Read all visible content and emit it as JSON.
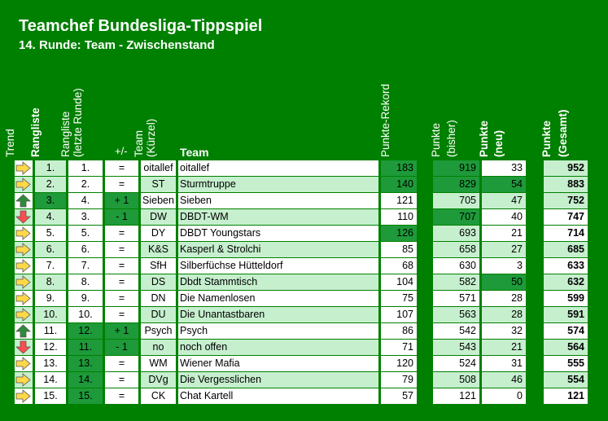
{
  "title": "Teamchef Bundesliga-Tippspiel",
  "subtitle": "14. Runde: Team - Zwischenstand",
  "headers": {
    "trend": "Trend",
    "rangliste": "Rangliste",
    "rangliste_letzte_1": "Rangliste",
    "rangliste_letzte_2": "(letzte Runde)",
    "plusminus": "+/-",
    "team_kuerzel_1": "Team",
    "team_kuerzel_2": "(Kürzel)",
    "team": "Team",
    "rekord": "Punkte-Rekord",
    "bisher_1": "Punkte",
    "bisher_2": "(bisher)",
    "neu_1": "Punkte",
    "neu_2": "(neu)",
    "gesamt_1": "Punkte",
    "gesamt_2": "(Gesamt)"
  },
  "colors": {
    "background": "#008000",
    "light_cell": "#c6efce",
    "dark_cell": "#1e9a3a",
    "arrow_right": "#ffd84a",
    "arrow_up": "#2e8b3a",
    "arrow_down": "#ff4d4d"
  },
  "rows": [
    {
      "trend": "right",
      "rank": "1.",
      "prev": "1.",
      "change": "=",
      "code": "oitallef",
      "name": "oitallef",
      "rekord": "183",
      "bisher": "919",
      "neu": "33",
      "gesamt": "952"
    },
    {
      "trend": "right",
      "rank": "2.",
      "prev": "2.",
      "change": "=",
      "code": "ST",
      "name": "Sturmtruppe",
      "rekord": "140",
      "bisher": "829",
      "neu": "54",
      "gesamt": "883"
    },
    {
      "trend": "up",
      "rank": "3.",
      "prev": "4.",
      "change": "+ 1",
      "code": "Sieben",
      "name": "Sieben",
      "rekord": "121",
      "bisher": "705",
      "neu": "47",
      "gesamt": "752"
    },
    {
      "trend": "down",
      "rank": "4.",
      "prev": "3.",
      "change": "- 1",
      "code": "DW",
      "name": "DBDT-WM",
      "rekord": "110",
      "bisher": "707",
      "neu": "40",
      "gesamt": "747"
    },
    {
      "trend": "right",
      "rank": "5.",
      "prev": "5.",
      "change": "=",
      "code": "DY",
      "name": "DBDT Youngstars",
      "rekord": "126",
      "bisher": "693",
      "neu": "21",
      "gesamt": "714"
    },
    {
      "trend": "right",
      "rank": "6.",
      "prev": "6.",
      "change": "=",
      "code": "K&S",
      "name": "Kasperl & Strolchi",
      "rekord": "85",
      "bisher": "658",
      "neu": "27",
      "gesamt": "685"
    },
    {
      "trend": "right",
      "rank": "7.",
      "prev": "7.",
      "change": "=",
      "code": "SfH",
      "name": "Silberfüchse Hütteldorf",
      "rekord": "68",
      "bisher": "630",
      "neu": "3",
      "gesamt": "633"
    },
    {
      "trend": "right",
      "rank": "8.",
      "prev": "8.",
      "change": "=",
      "code": "DS",
      "name": "Dbdt Stammtisch",
      "rekord": "104",
      "bisher": "582",
      "neu": "50",
      "gesamt": "632"
    },
    {
      "trend": "right",
      "rank": "9.",
      "prev": "9.",
      "change": "=",
      "code": "DN",
      "name": "Die Namenlosen",
      "rekord": "75",
      "bisher": "571",
      "neu": "28",
      "gesamt": "599"
    },
    {
      "trend": "right",
      "rank": "10.",
      "prev": "10.",
      "change": "=",
      "code": "DU",
      "name": "Die Unantastbaren",
      "rekord": "107",
      "bisher": "563",
      "neu": "28",
      "gesamt": "591"
    },
    {
      "trend": "up",
      "rank": "11.",
      "prev": "12.",
      "change": "+ 1",
      "code": "Psych",
      "name": "Psych",
      "rekord": "86",
      "bisher": "542",
      "neu": "32",
      "gesamt": "574"
    },
    {
      "trend": "down",
      "rank": "12.",
      "prev": "11.",
      "change": "- 1",
      "code": "no",
      "name": "noch offen",
      "rekord": "71",
      "bisher": "543",
      "neu": "21",
      "gesamt": "564"
    },
    {
      "trend": "right",
      "rank": "13.",
      "prev": "13.",
      "change": "=",
      "code": "WM",
      "name": "Wiener Mafia",
      "rekord": "120",
      "bisher": "524",
      "neu": "31",
      "gesamt": "555"
    },
    {
      "trend": "right",
      "rank": "14.",
      "prev": "14.",
      "change": "=",
      "code": "DVg",
      "name": "Die Vergesslichen",
      "rekord": "79",
      "bisher": "508",
      "neu": "46",
      "gesamt": "554"
    },
    {
      "trend": "right",
      "rank": "15.",
      "prev": "15.",
      "change": "=",
      "code": "CK",
      "name": "Chat Kartell",
      "rekord": "57",
      "bisher": "121",
      "neu": "0",
      "gesamt": "121"
    }
  ]
}
